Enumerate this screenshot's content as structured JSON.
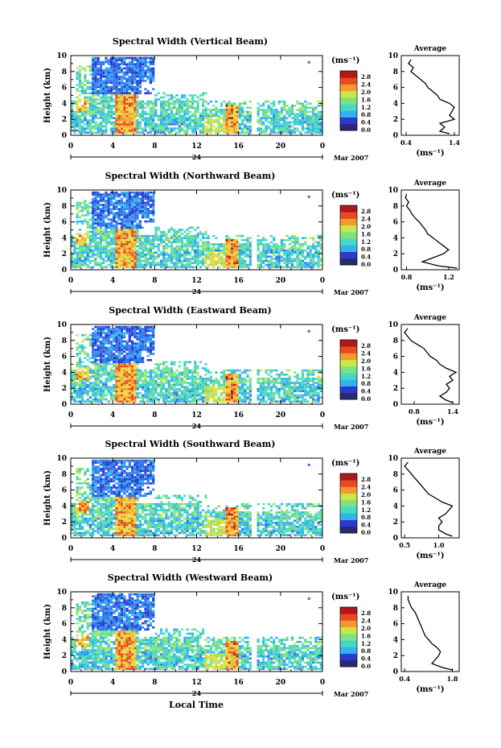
{
  "figure": {
    "xlabel_bottom": "Local Time",
    "date_label": "Mar 2007",
    "midnight_label": "24",
    "colorbar_unit": "(ms⁻¹)",
    "avg_unit": "(ms⁻¹)",
    "avg_title": "Average",
    "height_label": "Height (km)",
    "colors": {
      "scale": [
        "#2a2a6e",
        "#2b3bd0",
        "#2f78ee",
        "#31b4ee",
        "#45d8c4",
        "#7fe27f",
        "#c8e84a",
        "#f2d43a",
        "#f49a2c",
        "#ea4a22",
        "#b01818"
      ]
    }
  },
  "chart_data": [
    {
      "type": "heatmap",
      "title": "Spectral Width (Vertical Beam)",
      "ylabel": "Height (km)",
      "ylim": [
        0,
        10
      ],
      "xlim": [
        0,
        24
      ],
      "x_ticks": [
        "0",
        "4",
        "8",
        "12",
        "16",
        "20",
        "0"
      ],
      "y_ticks": [
        "0",
        "2",
        "4",
        "6",
        "8",
        "10"
      ],
      "colorbar": {
        "unit": "(ms⁻¹)",
        "ticks": [
          "0.0",
          "0.4",
          "0.8",
          "1.2",
          "1.6",
          "2.0",
          "2.4",
          "2.8"
        ]
      },
      "average_profile": {
        "title": "Average",
        "xlabel": "(ms⁻¹)",
        "xticks": [
          "0.4",
          "1.4"
        ],
        "xlim": [
          0.3,
          1.5
        ],
        "heights": [
          0.2,
          0.5,
          1,
          1.5,
          2,
          2.5,
          3,
          3.5,
          4,
          4.5,
          5,
          5.5,
          6,
          6.5,
          7,
          7.5,
          8,
          8.5,
          9,
          9.5
        ],
        "values": [
          1.3,
          1.1,
          1.2,
          1.1,
          1.4,
          1.3,
          1.35,
          1.4,
          1.3,
          1.1,
          1.05,
          0.95,
          0.85,
          0.8,
          0.7,
          0.6,
          0.5,
          0.55,
          0.45,
          0.5
        ]
      }
    },
    {
      "type": "heatmap",
      "title": "Spectral Width (Northward Beam)",
      "ylabel": "Height (km)",
      "ylim": [
        0,
        10
      ],
      "xlim": [
        0,
        24
      ],
      "x_ticks": [
        "0",
        "4",
        "8",
        "12",
        "16",
        "20",
        "0"
      ],
      "y_ticks": [
        "0",
        "2",
        "4",
        "6",
        "8",
        "10"
      ],
      "colorbar": {
        "unit": "(ms⁻¹)",
        "ticks": [
          "0.0",
          "0.4",
          "0.8",
          "1.2",
          "1.6",
          "2.0",
          "2.4",
          "2.8"
        ]
      },
      "average_profile": {
        "title": "Average",
        "xlabel": "(ms⁻¹)",
        "xticks": [
          "0.8",
          "1.2"
        ],
        "xlim": [
          0.75,
          1.3
        ],
        "heights": [
          0.2,
          0.5,
          1,
          1.5,
          2,
          2.5,
          3,
          3.5,
          4,
          4.5,
          5,
          5.5,
          6,
          6.5,
          7,
          7.5,
          8,
          8.5,
          9,
          9.5
        ],
        "values": [
          1.28,
          1.1,
          0.95,
          1.05,
          1.15,
          1.2,
          1.15,
          1.1,
          1.05,
          1.0,
          0.98,
          0.95,
          0.92,
          0.88,
          0.85,
          0.83,
          0.8,
          0.82,
          0.79,
          0.8
        ]
      }
    },
    {
      "type": "heatmap",
      "title": "Spectral Width (Eastward Beam)",
      "ylabel": "Height (km)",
      "ylim": [
        0,
        10
      ],
      "xlim": [
        0,
        24
      ],
      "x_ticks": [
        "0",
        "4",
        "8",
        "12",
        "16",
        "20",
        "0"
      ],
      "y_ticks": [
        "0",
        "2",
        "4",
        "6",
        "8",
        "10"
      ],
      "colorbar": {
        "unit": "(ms⁻¹)",
        "ticks": [
          "0.0",
          "0.4",
          "0.8",
          "1.2",
          "1.6",
          "2.0",
          "2.4",
          "2.8"
        ]
      },
      "average_profile": {
        "title": "Average",
        "xlabel": "(ms⁻¹)",
        "xticks": [
          "0.8",
          "1.4"
        ],
        "xlim": [
          0.6,
          1.5
        ],
        "heights": [
          0.2,
          0.5,
          1,
          1.5,
          2,
          2.5,
          3,
          3.5,
          4,
          4.5,
          5,
          5.5,
          6,
          6.5,
          7,
          7.5,
          8,
          8.5,
          9,
          9.5
        ],
        "values": [
          1.4,
          1.3,
          1.2,
          1.3,
          1.35,
          1.3,
          1.4,
          1.35,
          1.45,
          1.3,
          1.2,
          1.15,
          1.05,
          1.0,
          0.95,
          0.85,
          0.75,
          0.7,
          0.65,
          0.7
        ]
      }
    },
    {
      "type": "heatmap",
      "title": "Spectral Width (Southward Beam)",
      "ylabel": "Height (km)",
      "ylim": [
        0,
        10
      ],
      "xlim": [
        0,
        24
      ],
      "x_ticks": [
        "0",
        "4",
        "8",
        "12",
        "16",
        "20",
        "0"
      ],
      "y_ticks": [
        "0",
        "2",
        "4",
        "6",
        "8",
        "10"
      ],
      "colorbar": {
        "unit": "(ms⁻¹)",
        "ticks": [
          "0.0",
          "0.4",
          "0.8",
          "1.2",
          "1.6",
          "2.0",
          "2.4",
          "2.8"
        ]
      },
      "average_profile": {
        "title": "Average",
        "xlabel": "(ms⁻¹)",
        "xticks": [
          "0.5",
          "1.0"
        ],
        "xlim": [
          0.45,
          1.3
        ],
        "heights": [
          0.2,
          0.5,
          1,
          1.5,
          2,
          2.5,
          3,
          3.5,
          4,
          4.5,
          5,
          5.5,
          6,
          6.5,
          7,
          7.5,
          8,
          8.5,
          9,
          9.5
        ],
        "values": [
          1.2,
          1.1,
          1.0,
          1.0,
          1.05,
          1.0,
          1.1,
          1.15,
          1.2,
          1.05,
          0.95,
          0.85,
          0.8,
          0.75,
          0.7,
          0.65,
          0.6,
          0.55,
          0.5,
          0.55
        ]
      }
    },
    {
      "type": "heatmap",
      "title": "Spectral Width (Westward Beam)",
      "ylabel": "Height (km)",
      "ylim": [
        0,
        10
      ],
      "xlim": [
        0,
        24
      ],
      "x_ticks": [
        "0",
        "4",
        "8",
        "12",
        "16",
        "20",
        "0"
      ],
      "y_ticks": [
        "0",
        "2",
        "4",
        "6",
        "8",
        "10"
      ],
      "colorbar": {
        "unit": "(ms⁻¹)",
        "ticks": [
          "0.0",
          "0.4",
          "0.8",
          "1.2",
          "1.6",
          "2.0",
          "2.4",
          "2.8"
        ]
      },
      "average_profile": {
        "title": "Average",
        "xlabel": "(ms⁻¹)",
        "xticks": [
          "0.4",
          "1.8"
        ],
        "xlim": [
          0.3,
          2.0
        ],
        "heights": [
          0.2,
          0.5,
          1,
          1.5,
          2,
          2.5,
          3,
          3.5,
          4,
          4.5,
          5,
          5.5,
          6,
          6.5,
          7,
          7.5,
          8,
          8.5,
          9,
          9.5
        ],
        "values": [
          1.8,
          1.5,
          1.2,
          1.3,
          1.4,
          1.45,
          1.35,
          1.2,
          1.1,
          1.0,
          0.95,
          0.9,
          0.85,
          0.8,
          0.75,
          0.7,
          0.6,
          0.55,
          0.5,
          0.5
        ]
      }
    }
  ]
}
